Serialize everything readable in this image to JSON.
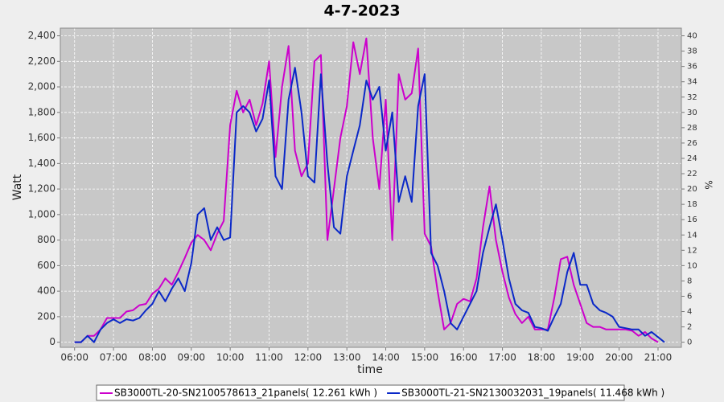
{
  "chart_data": {
    "type": "line",
    "title": "4-7-2023",
    "x_label": "time",
    "y_label": "Watt",
    "y2_label": "%",
    "xlim": [
      338,
      1296
    ],
    "xticks": [
      {
        "value": 360,
        "label": "06:00"
      },
      {
        "value": 420,
        "label": "07:00"
      },
      {
        "value": 480,
        "label": "08:00"
      },
      {
        "value": 540,
        "label": "09:00"
      },
      {
        "value": 600,
        "label": "10:00"
      },
      {
        "value": 660,
        "label": "11:00"
      },
      {
        "value": 720,
        "label": "12:00"
      },
      {
        "value": 780,
        "label": "13:00"
      },
      {
        "value": 840,
        "label": "14:00"
      },
      {
        "value": 900,
        "label": "15:00"
      },
      {
        "value": 960,
        "label": "16:00"
      },
      {
        "value": 1020,
        "label": "17:00"
      },
      {
        "value": 1080,
        "label": "18:00"
      },
      {
        "value": 1140,
        "label": "19:00"
      },
      {
        "value": 1200,
        "label": "20:00"
      },
      {
        "value": 1260,
        "label": "21:00"
      }
    ],
    "ylim": [
      -40,
      2460
    ],
    "yticks": [
      0,
      200,
      400,
      600,
      800,
      {
        "value": 1000,
        "label": "1,000"
      },
      {
        "value": 1200,
        "label": "1,200"
      },
      {
        "value": 1400,
        "label": "1,400"
      },
      {
        "value": 1600,
        "label": "1,600"
      },
      {
        "value": 1800,
        "label": "1,800"
      },
      {
        "value": 2000,
        "label": "2,000"
      },
      {
        "value": 2200,
        "label": "2,200"
      },
      {
        "value": 2400,
        "label": "2,400"
      }
    ],
    "y2lim": [
      -0.667,
      41
    ],
    "y2ticks": [
      0,
      2,
      4,
      6,
      8,
      10,
      12,
      14,
      16,
      18,
      20,
      22,
      24,
      26,
      28,
      30,
      32,
      34,
      36,
      38,
      40
    ],
    "grid": true,
    "x": [
      360,
      370,
      380,
      390,
      400,
      410,
      420,
      430,
      440,
      450,
      460,
      470,
      480,
      490,
      500,
      510,
      520,
      530,
      540,
      550,
      560,
      570,
      580,
      590,
      600,
      610,
      620,
      630,
      640,
      650,
      660,
      670,
      680,
      690,
      700,
      710,
      720,
      730,
      740,
      750,
      760,
      770,
      780,
      790,
      800,
      810,
      820,
      830,
      840,
      850,
      860,
      870,
      880,
      890,
      900,
      910,
      920,
      930,
      940,
      950,
      960,
      970,
      980,
      990,
      1000,
      1010,
      1020,
      1030,
      1040,
      1050,
      1060,
      1070,
      1080,
      1090,
      1100,
      1110,
      1120,
      1130,
      1140,
      1150,
      1160,
      1170,
      1180,
      1190,
      1200,
      1210,
      1220,
      1230,
      1240,
      1250,
      1260,
      1270
    ],
    "series": [
      {
        "name": "SB3000TL-20-SN2100578613_21panels( 12.261 kWh )",
        "color": "#cc00cc",
        "values": [
          0,
          0,
          50,
          50,
          100,
          190,
          190,
          190,
          240,
          250,
          290,
          300,
          380,
          420,
          500,
          450,
          550,
          660,
          780,
          840,
          800,
          720,
          850,
          950,
          1700,
          1970,
          1800,
          1900,
          1700,
          1870,
          2200,
          1450,
          2000,
          2320,
          1500,
          1300,
          1400,
          2200,
          2250,
          800,
          1200,
          1600,
          1850,
          2350,
          2100,
          2380,
          1600,
          1200,
          1900,
          800,
          2100,
          1900,
          1950,
          2300,
          850,
          750,
          400,
          100,
          150,
          300,
          340,
          320,
          500,
          900,
          1220,
          800,
          550,
          350,
          220,
          150,
          200,
          100,
          100,
          100,
          350,
          650,
          670,
          450,
          300,
          150,
          120,
          120,
          100,
          100,
          100,
          100,
          90,
          50,
          80,
          30,
          0,
          null
        ]
      },
      {
        "name": "SB3000TL-21-SN2130032031_19panels( 11.468 kWh )",
        "color": "#0a28c8",
        "values": [
          0,
          0,
          50,
          0,
          100,
          150,
          180,
          150,
          180,
          170,
          190,
          250,
          300,
          400,
          320,
          420,
          500,
          400,
          620,
          1000,
          1050,
          800,
          900,
          800,
          820,
          1800,
          1850,
          1800,
          1650,
          1750,
          2050,
          1300,
          1200,
          1900,
          2150,
          1800,
          1300,
          1250,
          2100,
          1400,
          900,
          850,
          1300,
          1500,
          1700,
          2050,
          1900,
          2000,
          1500,
          1800,
          1100,
          1300,
          1100,
          1850,
          2100,
          700,
          600,
          400,
          150,
          100,
          200,
          300,
          400,
          700,
          900,
          1080,
          800,
          500,
          300,
          250,
          230,
          120,
          110,
          90,
          200,
          300,
          550,
          700,
          450,
          450,
          300,
          250,
          230,
          200,
          120,
          110,
          100,
          100,
          50,
          80,
          40,
          0
        ]
      }
    ]
  }
}
